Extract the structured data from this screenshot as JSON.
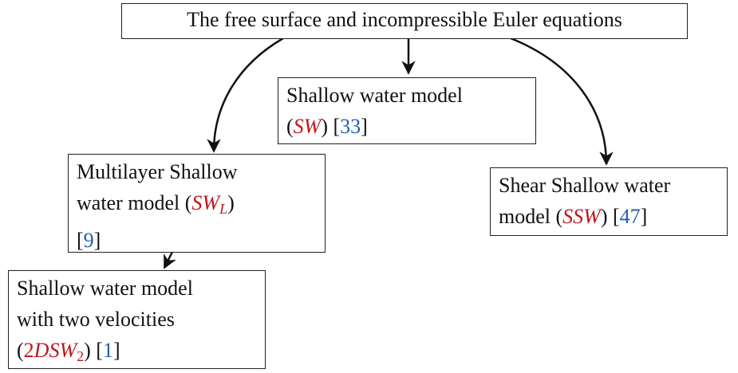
{
  "nodes": [
    {
      "lines": [
        [
          {
            "text": "The free surface and incompressible Euler equations"
          }
        ]
      ]
    },
    {
      "lines": [
        [
          {
            "text": "Shallow water model"
          }
        ],
        [
          {
            "text": "("
          },
          {
            "text": "SW",
            "style": "math"
          },
          {
            "text": ") ["
          },
          {
            "text": "33",
            "style": "ref"
          },
          {
            "text": "]"
          }
        ]
      ]
    },
    {
      "lines": [
        [
          {
            "text": "Multilayer Shallow"
          }
        ],
        [
          {
            "text": "water model ("
          },
          {
            "text": "SW",
            "style": "math"
          },
          {
            "text": "L",
            "style": "math-sub"
          },
          {
            "text": ")"
          }
        ],
        [
          {
            "text": "["
          },
          {
            "text": "9",
            "style": "ref"
          },
          {
            "text": "]"
          }
        ]
      ]
    },
    {
      "lines": [
        [
          {
            "text": "Shear Shallow water"
          }
        ],
        [
          {
            "text": "model ("
          },
          {
            "text": "SSW",
            "style": "math"
          },
          {
            "text": ") ["
          },
          {
            "text": "47",
            "style": "ref"
          },
          {
            "text": "]"
          }
        ]
      ]
    },
    {
      "lines": [
        [
          {
            "text": "Shallow water model"
          }
        ],
        [
          {
            "text": "with two velocities"
          }
        ],
        [
          {
            "text": "("
          },
          {
            "text": "2",
            "style": "num"
          },
          {
            "text": "DSW",
            "style": "math"
          },
          {
            "text": "2",
            "style": "num-sub"
          },
          {
            "text": ") ["
          },
          {
            "text": "1",
            "style": "ref"
          },
          {
            "text": "]"
          }
        ]
      ]
    }
  ]
}
